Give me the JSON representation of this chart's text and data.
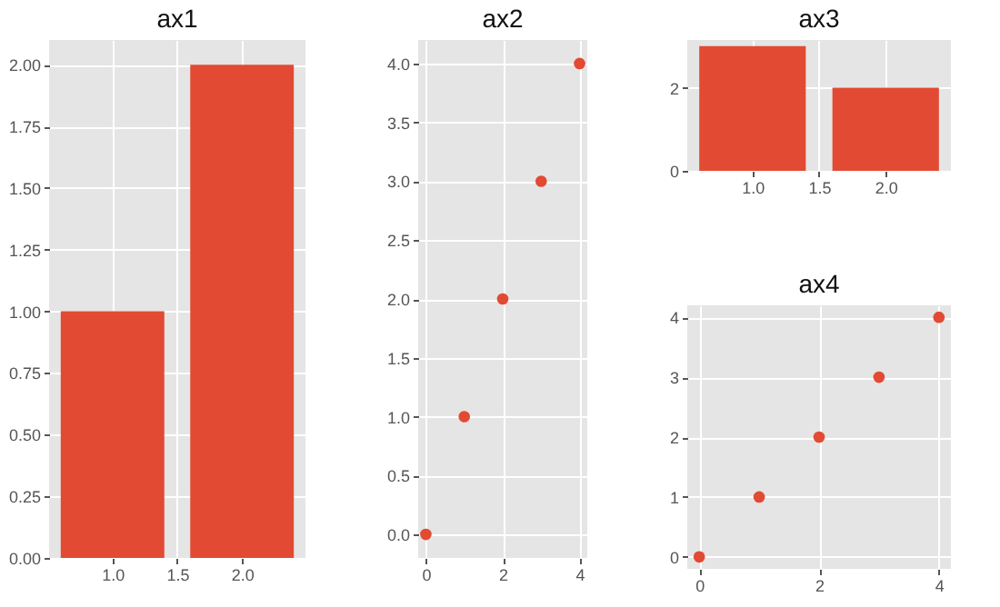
{
  "chart_data": [
    {
      "type": "bar",
      "title": "ax1",
      "x": [
        1,
        2
      ],
      "values": [
        1,
        2
      ],
      "color": "#e24a33",
      "xlim": [
        0.51,
        2.49
      ],
      "xticks": [
        {
          "value": 1,
          "label": "1.0"
        },
        {
          "value": 1.5,
          "label": "1.5"
        },
        {
          "value": 2,
          "label": "2.0"
        }
      ],
      "ylim": [
        0,
        2.1
      ],
      "yticks": [
        {
          "value": 0,
          "label": "0.00"
        },
        {
          "value": 0.25,
          "label": "0.25"
        },
        {
          "value": 0.5,
          "label": "0.50"
        },
        {
          "value": 0.75,
          "label": "0.75"
        },
        {
          "value": 1,
          "label": "1.00"
        },
        {
          "value": 1.25,
          "label": "1.25"
        },
        {
          "value": 1.5,
          "label": "1.50"
        },
        {
          "value": 1.75,
          "label": "1.75"
        },
        {
          "value": 2,
          "label": "2.00"
        }
      ],
      "grid": true
    },
    {
      "type": "scatter",
      "title": "ax2",
      "x": [
        0,
        1,
        2,
        3,
        4
      ],
      "values": [
        0,
        1,
        2,
        3,
        4
      ],
      "color": "#e24a33",
      "marker": "circle",
      "xlim": [
        -0.2,
        4.2
      ],
      "xticks": [
        0,
        2,
        4
      ],
      "ylim": [
        -0.2,
        4.2
      ],
      "yticks": [
        {
          "value": 0,
          "label": "0.0"
        },
        {
          "value": 0.5,
          "label": "0.5"
        },
        {
          "value": 1,
          "label": "1.0"
        },
        {
          "value": 1.5,
          "label": "1.5"
        },
        {
          "value": 2,
          "label": "2.0"
        },
        {
          "value": 2.5,
          "label": "2.5"
        },
        {
          "value": 3,
          "label": "3.0"
        },
        {
          "value": 3.5,
          "label": "3.5"
        },
        {
          "value": 4,
          "label": "4.0"
        }
      ],
      "grid": true
    },
    {
      "type": "bar",
      "title": "ax3",
      "x": [
        1,
        2
      ],
      "values": [
        3,
        2
      ],
      "color": "#e24a33",
      "xlim": [
        0.51,
        2.49
      ],
      "xticks": [
        {
          "value": 1,
          "label": "1.0"
        },
        {
          "value": 1.5,
          "label": "1.5"
        },
        {
          "value": 2,
          "label": "2.0"
        }
      ],
      "ylim": [
        0,
        3.15
      ],
      "yticks": [
        0,
        2
      ],
      "grid": true
    },
    {
      "type": "scatter",
      "title": "ax4",
      "x": [
        0,
        1,
        2,
        3,
        4
      ],
      "values": [
        0,
        1,
        2,
        3,
        4
      ],
      "color": "#e24a33",
      "marker": "circle",
      "xlim": [
        -0.2,
        4.2
      ],
      "xticks": [
        0,
        2,
        4
      ],
      "ylim": [
        -0.2,
        4.2
      ],
      "yticks": [
        0,
        1,
        2,
        3,
        4
      ],
      "grid": true
    }
  ]
}
